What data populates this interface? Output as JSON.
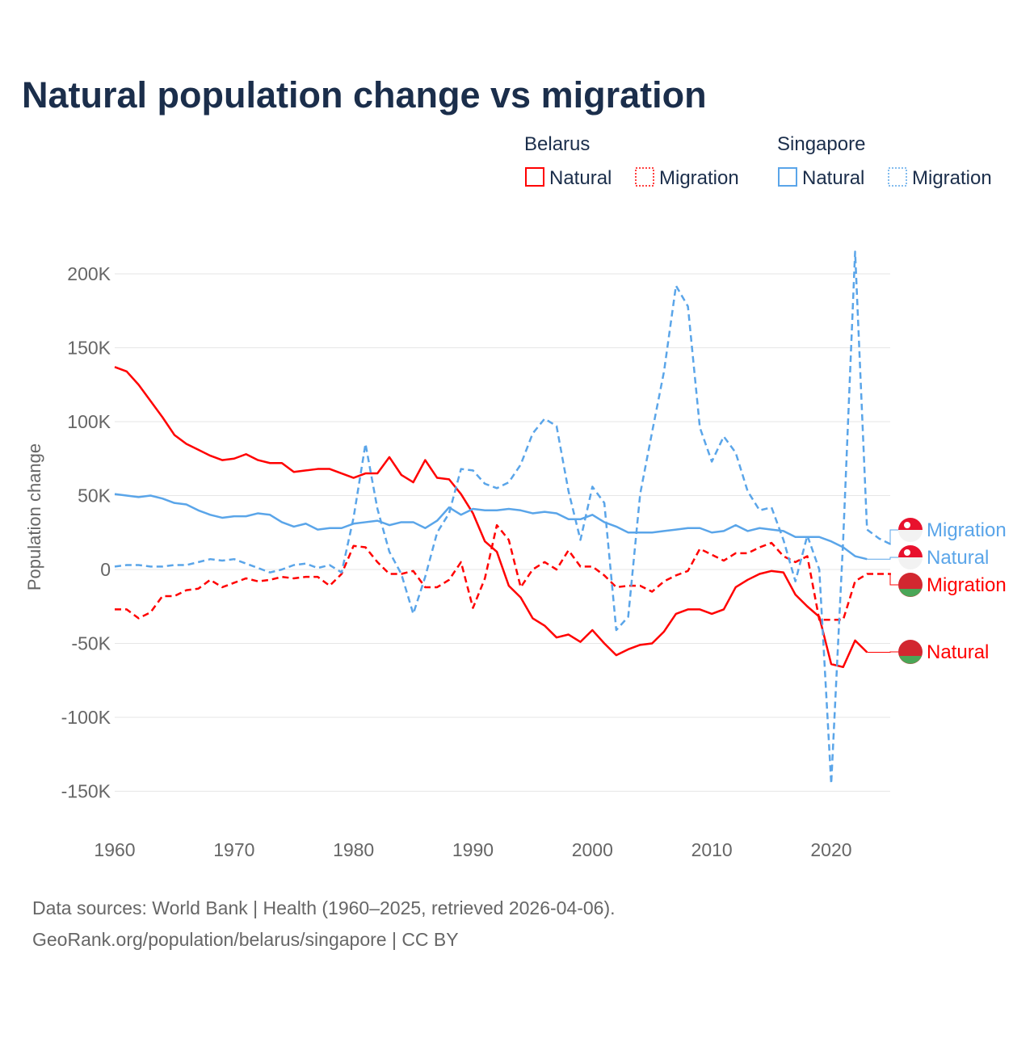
{
  "chart_data": {
    "type": "line",
    "title": "Natural population change vs migration",
    "xlabel": "",
    "ylabel": "Population change",
    "xlim": [
      1960,
      2025
    ],
    "ylim": [
      -170000,
      220000
    ],
    "grid": true,
    "x_ticks": [
      1960,
      1970,
      1980,
      1990,
      2000,
      2010,
      2020
    ],
    "x_tick_labels": [
      "1960",
      "1970",
      "1980",
      "1990",
      "2000",
      "2010",
      "2020"
    ],
    "y_ticks": [
      200000,
      150000,
      100000,
      50000,
      0,
      -50000,
      -100000,
      -150000
    ],
    "y_tick_labels": [
      "200K",
      "150K",
      "100K",
      "50K",
      "0",
      "-50K",
      "-100K",
      "-150K"
    ],
    "legend": {
      "placement": "top-right",
      "groups": [
        {
          "title": "Belarus",
          "items": [
            "Natural",
            "Migration"
          ]
        },
        {
          "title": "Singapore",
          "items": [
            "Natural",
            "Migration"
          ]
        }
      ]
    },
    "start_year": 1960,
    "series": [
      {
        "name": "Belarus Natural",
        "country": "Belarus",
        "kind": "Natural",
        "color": "#ff0000",
        "dashed": false,
        "end_label": "Natural",
        "values": [
          137,
          134,
          125,
          114,
          103,
          91,
          85,
          81,
          77,
          74,
          75,
          78,
          74,
          72,
          72,
          66,
          67,
          68,
          68,
          65,
          62,
          65,
          65,
          76,
          64,
          59,
          74,
          62,
          61,
          51,
          38,
          19,
          12,
          -11,
          -19,
          -33,
          -38,
          -46,
          -44,
          -49,
          -41,
          -50,
          -58,
          -54,
          -51,
          -50,
          -42,
          -30,
          -27,
          -27,
          -30,
          -27,
          -12,
          -7,
          -3,
          -1,
          -2,
          -17,
          -25,
          -32,
          -64,
          -66,
          -48,
          -56
        ]
      },
      {
        "name": "Belarus Migration",
        "country": "Belarus",
        "kind": "Migration",
        "color": "#ff0000",
        "dashed": true,
        "end_label": "Migration",
        "values": [
          -27,
          -27,
          -33,
          -29,
          -18,
          -18,
          -14,
          -13,
          -7,
          -12,
          -9,
          -6,
          -8,
          -7,
          -5,
          -6,
          -5,
          -5,
          -11,
          -3,
          16,
          15,
          5,
          -3,
          -3,
          -1,
          -12,
          -12,
          -7,
          5,
          -26,
          -6,
          30,
          20,
          -12,
          0,
          5,
          0,
          13,
          2,
          2,
          -4,
          -12,
          -11,
          -11,
          -15,
          -8,
          -4,
          -1,
          14,
          10,
          6,
          11,
          11,
          15,
          18,
          9,
          5,
          9,
          -34,
          -34,
          -34,
          -8,
          -3,
          -3,
          -3
        ]
      },
      {
        "name": "Singapore Natural",
        "country": "Singapore",
        "kind": "Natural",
        "color": "#5aa5e9",
        "dashed": false,
        "end_label": "Natural",
        "values": [
          51,
          50,
          49,
          50,
          48,
          45,
          44,
          40,
          37,
          35,
          36,
          36,
          38,
          37,
          32,
          29,
          31,
          27,
          28,
          28,
          31,
          32,
          33,
          30,
          32,
          32,
          28,
          33,
          42,
          37,
          41,
          40,
          40,
          41,
          40,
          38,
          39,
          38,
          34,
          34,
          37,
          32,
          29,
          25,
          25,
          25,
          26,
          27,
          28,
          28,
          25,
          26,
          30,
          26,
          28,
          27,
          26,
          22,
          22,
          22,
          19,
          15,
          9,
          7
        ]
      },
      {
        "name": "Singapore Migration",
        "country": "Singapore",
        "kind": "Migration",
        "color": "#5aa5e9",
        "dashed": true,
        "end_label": "Migration",
        "values": [
          2,
          3,
          3,
          2,
          2,
          3,
          3,
          5,
          7,
          6,
          7,
          4,
          1,
          -2,
          0,
          3,
          4,
          1,
          3,
          -2,
          35,
          85,
          41,
          12,
          -3,
          -30,
          -5,
          25,
          38,
          68,
          67,
          58,
          55,
          59,
          71,
          92,
          102,
          97,
          53,
          20,
          56,
          45,
          -41,
          -32,
          51,
          93,
          134,
          192,
          178,
          96,
          73,
          90,
          79,
          53,
          40,
          42,
          20,
          -8,
          23,
          0,
          -145,
          20,
          215,
          27,
          21,
          17
        ]
      }
    ],
    "value_unit": "thousands"
  },
  "legend_labels": {
    "belarus": "Belarus",
    "singapore": "Singapore",
    "natural": "Natural",
    "migration": "Migration"
  },
  "footer": {
    "line1": "Data sources: World Bank | Health (1960–2025, retrieved 2026-04-06).",
    "line2": "GeoRank.org/population/belarus/singapore | CC BY"
  }
}
